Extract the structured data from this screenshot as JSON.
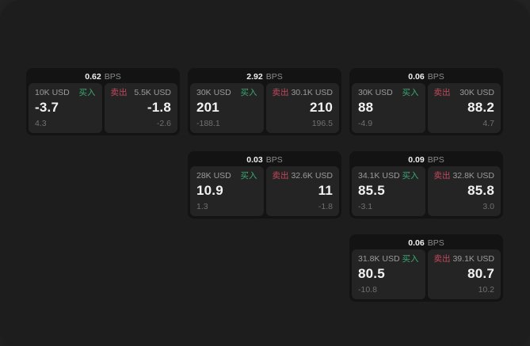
{
  "labels": {
    "bps": "BPS",
    "buy": "买入",
    "sell": "卖出"
  },
  "colors": {
    "buy": "#3BA873",
    "sell": "#C2485C",
    "surface": "#1d1d1d",
    "card": "#131313",
    "panel": "#242424"
  },
  "cards": [
    {
      "bps": "0.62",
      "buy": {
        "size": "10K USD",
        "price": "-3.7",
        "sub": "4.3"
      },
      "sell": {
        "size": "5.5K USD",
        "price": "-1.8",
        "sub": "-2.6"
      }
    },
    {
      "bps": "2.92",
      "buy": {
        "size": "30K USD",
        "price": "201",
        "sub": "-188.1"
      },
      "sell": {
        "size": "30.1K USD",
        "price": "210",
        "sub": "196.5"
      }
    },
    {
      "bps": "0.06",
      "buy": {
        "size": "30K USD",
        "price": "88",
        "sub": "-4.9"
      },
      "sell": {
        "size": "30K USD",
        "price": "88.2",
        "sub": "4.7"
      }
    },
    {
      "bps": "0.03",
      "buy": {
        "size": "28K USD",
        "price": "10.9",
        "sub": "1.3"
      },
      "sell": {
        "size": "32.6K USD",
        "price": "11",
        "sub": "-1.8"
      }
    },
    {
      "bps": "0.09",
      "buy": {
        "size": "34.1K USD",
        "price": "85.5",
        "sub": "-3.1"
      },
      "sell": {
        "size": "32.8K USD",
        "price": "85.8",
        "sub": "3.0"
      }
    },
    {
      "bps": "0.06",
      "buy": {
        "size": "31.8K USD",
        "price": "80.5",
        "sub": "-10.8"
      },
      "sell": {
        "size": "39.1K USD",
        "price": "80.7",
        "sub": "10.2"
      }
    }
  ]
}
